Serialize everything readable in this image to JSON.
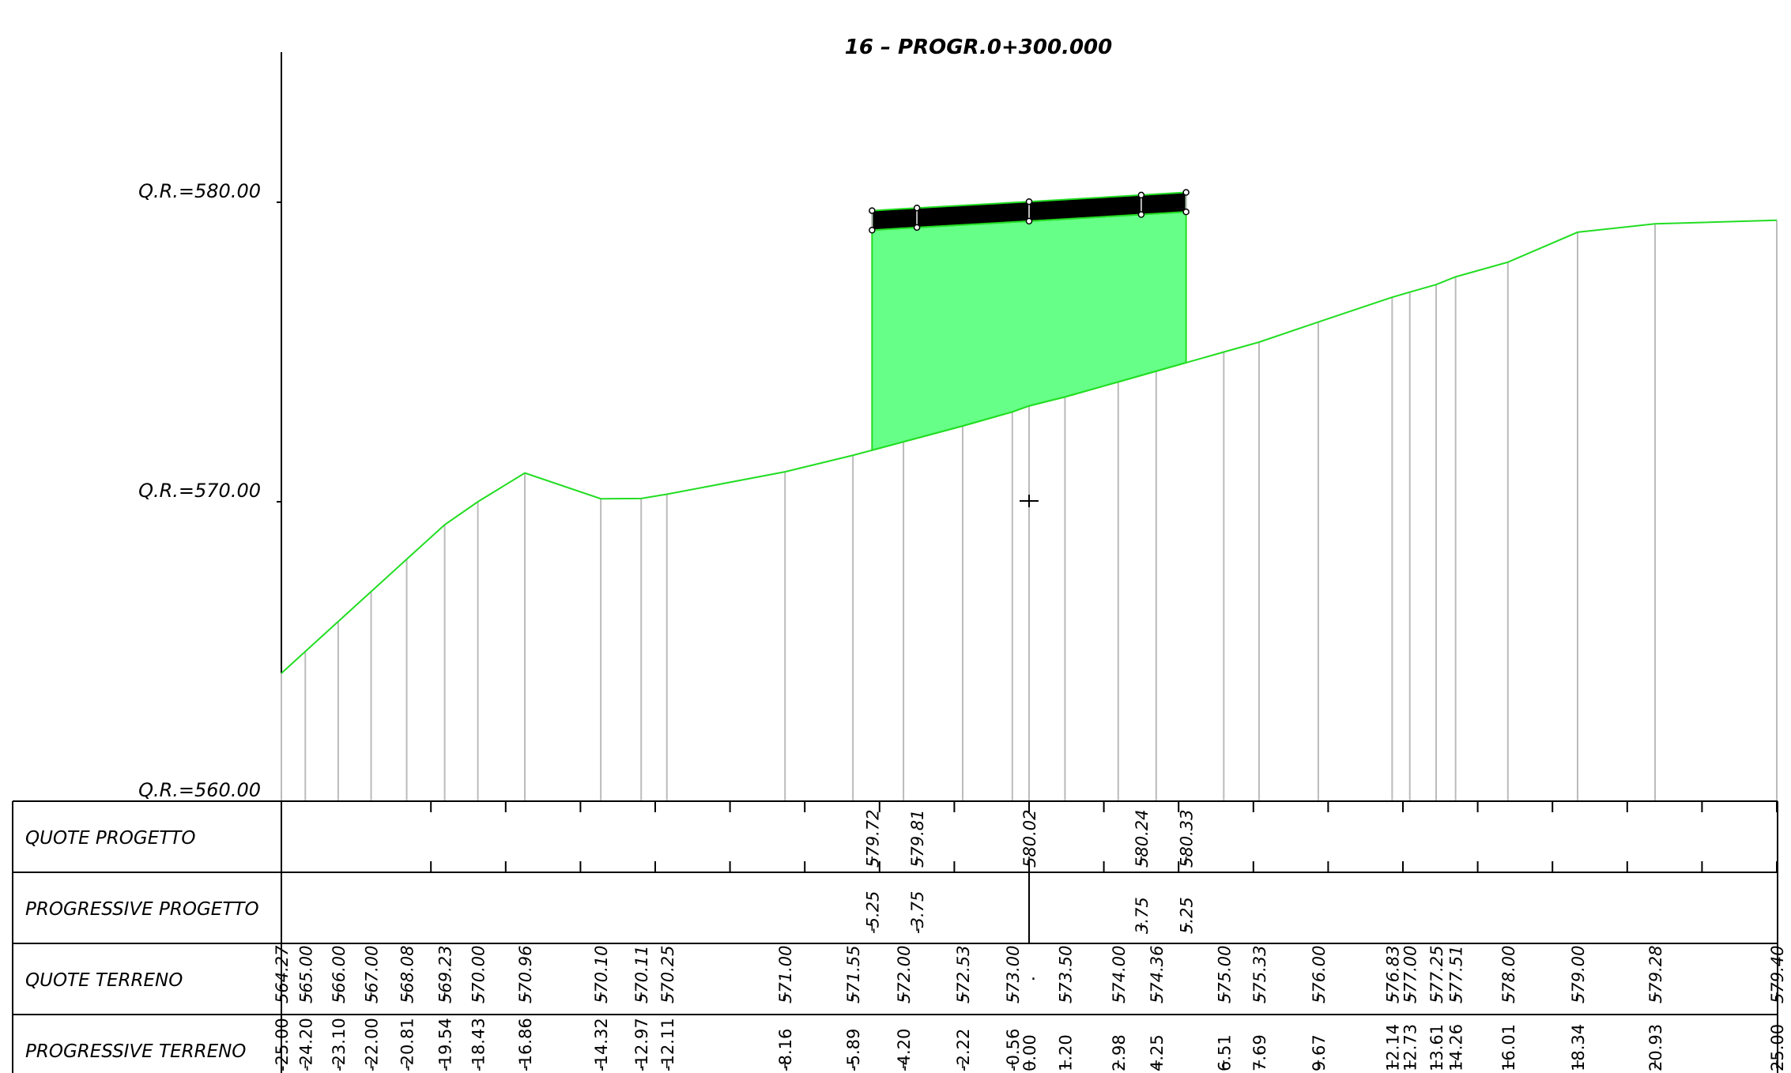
{
  "title": "16 – PROGR.0+300.000",
  "elevation_labels": [
    {
      "text": "Q.R.=580.00",
      "elev": 580
    },
    {
      "text": "Q.R.=570.00",
      "elev": 570
    },
    {
      "text": "Q.R.=560.00",
      "elev": 560
    }
  ],
  "row_labels": {
    "quote_progetto": "QUOTE PROGETTO",
    "progressive_progetto": "PROGRESSIVE PROGETTO",
    "quote_terreno": "QUOTE TERRENO",
    "progressive_terreno": "PROGRESSIVE TERRENO"
  },
  "colors": {
    "ground_line": "#22dd22",
    "fill": "#66ff88",
    "pavement": "#000000",
    "station_line": "#bbbbbb"
  },
  "chart_data": {
    "type": "cross_section",
    "terrain": [
      {
        "prog": "-25.00",
        "x": -25.0,
        "z": "564.27",
        "zv": 564.27
      },
      {
        "prog": "-24.20",
        "x": -24.2,
        "z": "565.00",
        "zv": 565.0
      },
      {
        "prog": "-23.10",
        "x": -23.1,
        "z": "566.00",
        "zv": 566.0
      },
      {
        "prog": "-22.00",
        "x": -22.0,
        "z": "567.00",
        "zv": 567.0
      },
      {
        "prog": "-20.81",
        "x": -20.81,
        "z": "568.08",
        "zv": 568.08
      },
      {
        "prog": "-19.54",
        "x": -19.54,
        "z": "569.23",
        "zv": 569.23
      },
      {
        "prog": "-18.43",
        "x": -18.43,
        "z": "570.00",
        "zv": 570.0
      },
      {
        "prog": "-16.86",
        "x": -16.86,
        "z": "570.96",
        "zv": 570.96
      },
      {
        "prog": "-14.32",
        "x": -14.32,
        "z": "570.10",
        "zv": 570.1
      },
      {
        "prog": "-12.97",
        "x": -12.97,
        "z": "570.11",
        "zv": 570.11
      },
      {
        "prog": "-12.11",
        "x": -12.11,
        "z": "570.25",
        "zv": 570.25
      },
      {
        "prog": "-8.16",
        "x": -8.16,
        "z": "571.00",
        "zv": 571.0
      },
      {
        "prog": "-5.89",
        "x": -5.89,
        "z": "571.55",
        "zv": 571.55
      },
      {
        "prog": "-4.20",
        "x": -4.2,
        "z": "572.00",
        "zv": 572.0
      },
      {
        "prog": "-2.22",
        "x": -2.22,
        "z": "572.53",
        "zv": 572.53
      },
      {
        "prog": "-0.56",
        "x": -0.56,
        "z": "573.00",
        "zv": 573.0
      },
      {
        "prog": "0.00",
        "x": 0.0,
        "z": ".",
        "zv": 573.2
      },
      {
        "prog": "1.20",
        "x": 1.2,
        "z": "573.50",
        "zv": 573.5
      },
      {
        "prog": "2.98",
        "x": 2.98,
        "z": "574.00",
        "zv": 574.0
      },
      {
        "prog": "4.25",
        "x": 4.25,
        "z": "574.36",
        "zv": 574.36
      },
      {
        "prog": "6.51",
        "x": 6.51,
        "z": "575.00",
        "zv": 575.0
      },
      {
        "prog": "7.69",
        "x": 7.69,
        "z": "575.33",
        "zv": 575.33
      },
      {
        "prog": "9.67",
        "x": 9.67,
        "z": "576.00",
        "zv": 576.0
      },
      {
        "prog": "12.14",
        "x": 12.14,
        "z": "576.83",
        "zv": 576.83
      },
      {
        "prog": "12.73",
        "x": 12.73,
        "z": "577.00",
        "zv": 577.0
      },
      {
        "prog": "13.61",
        "x": 13.61,
        "z": "577.25",
        "zv": 577.25
      },
      {
        "prog": "14.26",
        "x": 14.26,
        "z": "577.51",
        "zv": 577.51
      },
      {
        "prog": "16.01",
        "x": 16.01,
        "z": "578.00",
        "zv": 578.0
      },
      {
        "prog": "18.34",
        "x": 18.34,
        "z": "579.00",
        "zv": 579.0
      },
      {
        "prog": "20.93",
        "x": 20.93,
        "z": "579.28",
        "zv": 579.28
      },
      {
        "prog": "25.00",
        "x": 25.0,
        "z": "579.40",
        "zv": 579.4
      }
    ],
    "design": [
      {
        "prog": "-5.25",
        "x": -5.25,
        "z": "579.72",
        "zv": 579.72
      },
      {
        "prog": "-3.75",
        "x": -3.75,
        "z": "579.81",
        "zv": 579.81
      },
      {
        "prog": "",
        "x": 0.0,
        "z": "580.02",
        "zv": 580.02
      },
      {
        "prog": "3.75",
        "x": 3.75,
        "z": "580.24",
        "zv": 580.24
      },
      {
        "prog": "5.25",
        "x": 5.25,
        "z": "580.33",
        "zv": 580.33
      }
    ],
    "pavement_thickness": 0.65,
    "xlim": [
      -25,
      25
    ],
    "ylim": [
      560,
      580
    ]
  }
}
